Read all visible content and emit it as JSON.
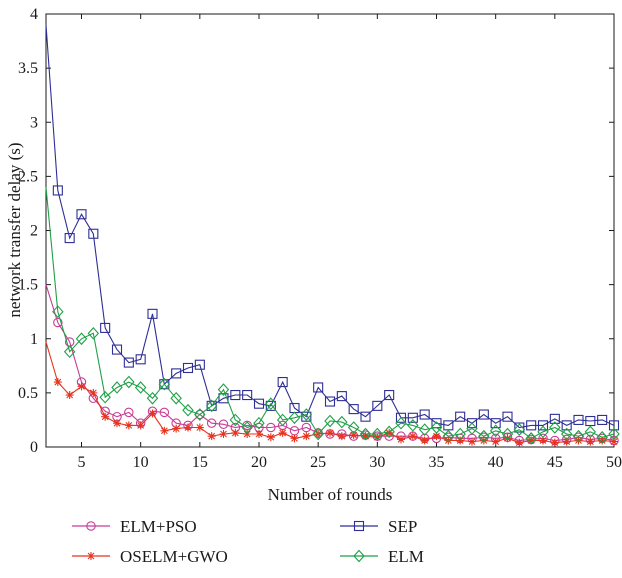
{
  "chart_data": {
    "type": "line",
    "xlabel": "Number of rounds",
    "ylabel": "network transfer delay (s)",
    "xlim": [
      2,
      50
    ],
    "ylim": [
      0,
      4
    ],
    "xticks": [
      5,
      10,
      15,
      20,
      25,
      30,
      35,
      40,
      45,
      50
    ],
    "yticks": [
      0,
      0.5,
      1,
      1.5,
      2,
      2.5,
      3,
      3.5,
      4
    ],
    "xtick_labels": [
      "5",
      "10",
      "15",
      "20",
      "25",
      "30",
      "35",
      "40",
      "45",
      "50"
    ],
    "ytick_labels": [
      "0",
      "0.5",
      "1",
      "1.5",
      "2",
      "2.5",
      "3",
      "3.5",
      "4"
    ],
    "grid": false,
    "legend_position": "bottom",
    "x": [
      2,
      3,
      4,
      5,
      6,
      7,
      8,
      9,
      10,
      11,
      12,
      13,
      14,
      15,
      16,
      17,
      18,
      19,
      20,
      21,
      22,
      23,
      24,
      25,
      26,
      27,
      28,
      29,
      30,
      31,
      32,
      33,
      34,
      35,
      36,
      37,
      38,
      39,
      40,
      41,
      42,
      43,
      44,
      45,
      46,
      47,
      48,
      49,
      50
    ],
    "series": [
      {
        "name": "ELM+PSO",
        "color": "#c83c96",
        "marker": "circle",
        "values": [
          1.5,
          1.15,
          0.97,
          0.6,
          0.45,
          0.33,
          0.28,
          0.32,
          0.22,
          0.33,
          0.32,
          0.22,
          0.2,
          0.3,
          0.22,
          0.21,
          0.18,
          0.2,
          0.18,
          0.18,
          0.2,
          0.15,
          0.18,
          0.13,
          0.12,
          0.12,
          0.1,
          0.11,
          0.1,
          0.1,
          0.1,
          0.1,
          0.08,
          0.08,
          0.09,
          0.08,
          0.08,
          0.09,
          0.08,
          0.09,
          0.06,
          0.07,
          0.08,
          0.06,
          0.07,
          0.09,
          0.07,
          0.08,
          0.06
        ]
      },
      {
        "name": "OSELM+GWO",
        "color": "#e8321e",
        "marker": "star",
        "values": [
          0.97,
          0.6,
          0.48,
          0.56,
          0.5,
          0.28,
          0.22,
          0.2,
          0.2,
          0.31,
          0.15,
          0.17,
          0.18,
          0.18,
          0.1,
          0.12,
          0.13,
          0.12,
          0.12,
          0.09,
          0.13,
          0.08,
          0.1,
          0.12,
          0.13,
          0.1,
          0.11,
          0.1,
          0.09,
          0.13,
          0.07,
          0.1,
          0.06,
          0.1,
          0.06,
          0.06,
          0.05,
          0.06,
          0.05,
          0.08,
          0.04,
          0.06,
          0.06,
          0.04,
          0.05,
          0.06,
          0.05,
          0.06,
          0.05
        ]
      },
      {
        "name": "SEP",
        "color": "#2e2e96",
        "marker": "square",
        "values": [
          3.9,
          2.37,
          1.93,
          2.15,
          1.97,
          1.1,
          0.9,
          0.78,
          0.81,
          1.23,
          0.58,
          0.68,
          0.73,
          0.76,
          0.38,
          0.45,
          0.48,
          0.48,
          0.4,
          0.38,
          0.6,
          0.36,
          0.28,
          0.55,
          0.42,
          0.47,
          0.35,
          0.28,
          0.38,
          0.48,
          0.27,
          0.27,
          0.3,
          0.22,
          0.2,
          0.28,
          0.22,
          0.3,
          0.22,
          0.28,
          0.18,
          0.2,
          0.2,
          0.26,
          0.2,
          0.25,
          0.24,
          0.25,
          0.2
        ]
      },
      {
        "name": "ELM",
        "color": "#1ea046",
        "marker": "diamond",
        "values": [
          2.4,
          1.25,
          0.88,
          1.0,
          1.05,
          0.46,
          0.55,
          0.6,
          0.55,
          0.45,
          0.58,
          0.45,
          0.34,
          0.3,
          0.38,
          0.53,
          0.25,
          0.18,
          0.22,
          0.4,
          0.25,
          0.27,
          0.3,
          0.12,
          0.24,
          0.23,
          0.18,
          0.12,
          0.12,
          0.14,
          0.22,
          0.2,
          0.16,
          0.18,
          0.1,
          0.12,
          0.17,
          0.1,
          0.15,
          0.12,
          0.16,
          0.08,
          0.14,
          0.18,
          0.12,
          0.1,
          0.14,
          0.09,
          0.12
        ]
      }
    ]
  }
}
